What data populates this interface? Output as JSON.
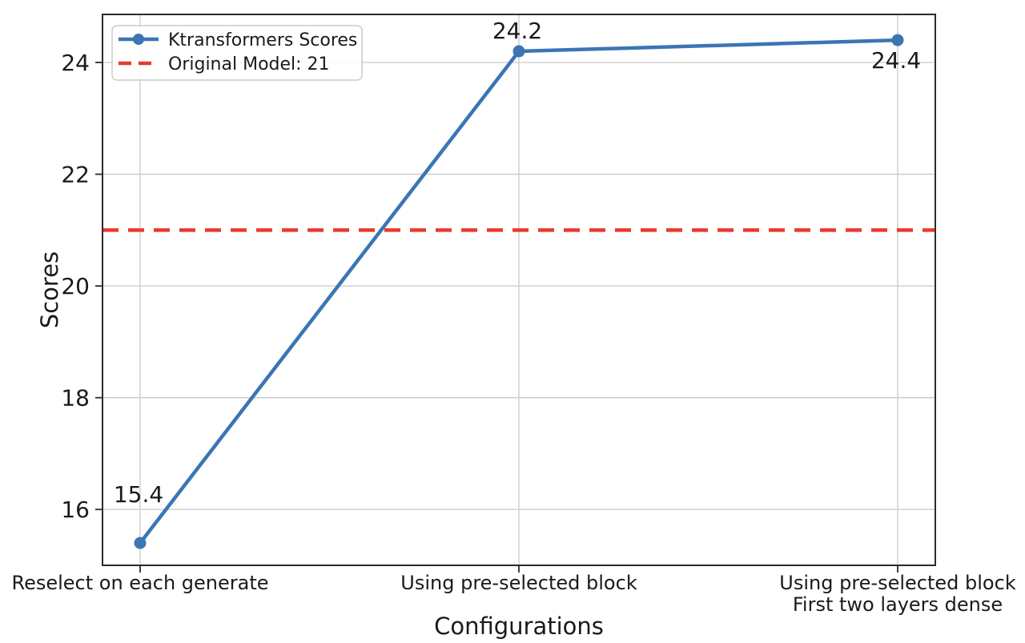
{
  "chart_data": {
    "type": "line",
    "title": "",
    "xlabel": "Configurations",
    "ylabel": "Scores",
    "categories": [
      "Reselect on each generate",
      "Using pre-selected block",
      "Using pre-selected block\nFirst two layers dense"
    ],
    "series": [
      {
        "name": "Ktransformers Scores",
        "values": [
          15.4,
          24.2,
          24.4
        ],
        "color": "#3b75b4",
        "marker": "circle",
        "style": "solid"
      }
    ],
    "reference_line": {
      "label": "Original Model: 21",
      "value": 21,
      "color": "#e8392e",
      "style": "dashed"
    },
    "annotations": [
      {
        "text": "15.4",
        "position": "above"
      },
      {
        "text": "24.2",
        "position": "above"
      },
      {
        "text": "24.4",
        "position": "below"
      }
    ],
    "yticks": [
      16,
      18,
      20,
      22,
      24
    ],
    "ylim": [
      15.0,
      24.86
    ],
    "grid": true,
    "legend": {
      "position": "upper-left",
      "entries": [
        "Ktransformers Scores",
        "Original Model: 21"
      ]
    }
  },
  "colors": {
    "series": "#3b75b4",
    "reference": "#e8392e",
    "grid": "#c9c9c9",
    "spine": "#2b2b2b",
    "text": "#1a1a1a",
    "legend_border": "#cccccc",
    "background": "#ffffff"
  }
}
